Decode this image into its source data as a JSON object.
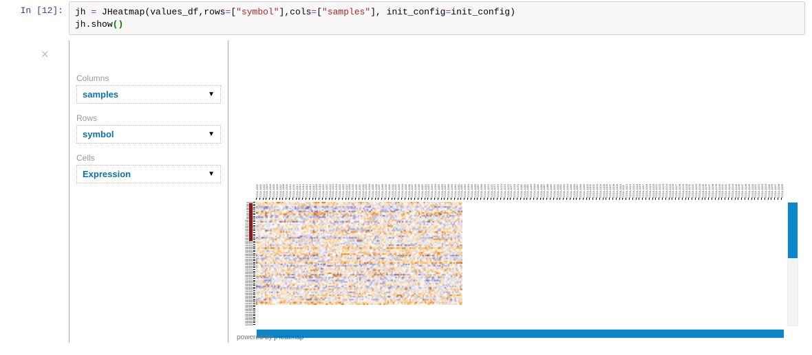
{
  "prompt": "In [12]:",
  "code": {
    "line1_tokens": [
      {
        "t": "jh ",
        "c": "nm"
      },
      {
        "t": "=",
        "c": "op"
      },
      {
        "t": " JHeatmap",
        "c": "fn"
      },
      {
        "t": "(",
        "c": "pn"
      },
      {
        "t": "values_df",
        "c": "nm"
      },
      {
        "t": ",",
        "c": "pn"
      },
      {
        "t": "rows",
        "c": "nm"
      },
      {
        "t": "=",
        "c": "op"
      },
      {
        "t": "[",
        "c": "pn"
      },
      {
        "t": "\"symbol\"",
        "c": "str"
      },
      {
        "t": "]",
        "c": "pn"
      },
      {
        "t": ",",
        "c": "pn"
      },
      {
        "t": "cols",
        "c": "nm"
      },
      {
        "t": "=",
        "c": "op"
      },
      {
        "t": "[",
        "c": "pn"
      },
      {
        "t": "\"samples\"",
        "c": "str"
      },
      {
        "t": "]",
        "c": "pn"
      },
      {
        "t": ", ",
        "c": "pn"
      },
      {
        "t": "init_config",
        "c": "nm"
      },
      {
        "t": "=",
        "c": "op"
      },
      {
        "t": "init_config",
        "c": "nm"
      },
      {
        "t": ")",
        "c": "pn"
      }
    ],
    "line2_tokens": [
      {
        "t": "jh",
        "c": "nm"
      },
      {
        "t": ".",
        "c": "pn"
      },
      {
        "t": "show",
        "c": "nm"
      },
      {
        "t": "(",
        "c": "par"
      },
      {
        "t": ")",
        "c": "par"
      }
    ]
  },
  "config": {
    "columns": {
      "label": "Columns",
      "value": "samples"
    },
    "rows": {
      "label": "Rows",
      "value": "symbol"
    },
    "cells": {
      "label": "Cells",
      "value": "Expression"
    }
  },
  "close_glyph": "×",
  "arrow_glyph": "▼",
  "heatmap": {
    "type": "heatmap",
    "n_cols": 160,
    "n_rows": 70,
    "palette": [
      "#5e3c99",
      "#8073ac",
      "#b2abd2",
      "#d8daeb",
      "#f7f7f7",
      "#fee0b6",
      "#fdb863",
      "#e08214",
      "#b35806"
    ],
    "background": "#ffffff",
    "vscroll_thumb_ratio": 0.45,
    "hscroll_thumb_ratio": 1.0,
    "accent_color": "#0b87c9",
    "row_label_prefix": "GENE",
    "col_label_prefix": "TCGA-"
  },
  "powered": {
    "prefix": "powered by ",
    "link": "jHeatmap"
  }
}
